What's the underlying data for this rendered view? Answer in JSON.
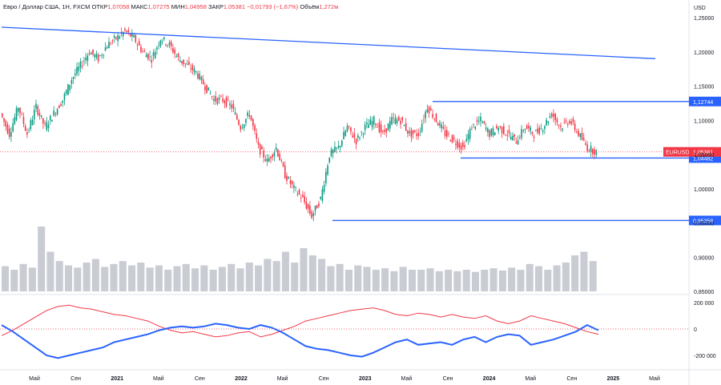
{
  "header": {
    "title": "Евро / Доллар США, 1Н, FXCM",
    "open_label": "ОТКР",
    "open": "1,07058",
    "high_label": "МАКС",
    "high": "1,07275",
    "low_label": "МИН",
    "low": "1,04958",
    "close_label": "ЗАКР",
    "close": "1,05381",
    "change": "−0,01793 (−1,67%)",
    "volume_label": "Объём",
    "volume": "1,272м"
  },
  "chart_data": {
    "type": "candlestick",
    "symbol": "EURUSD",
    "currency": "USD",
    "price_axis": {
      "min": 0.85,
      "max": 1.27,
      "ticks": [
        "1,25000",
        "1,20000",
        "1,15000",
        "1,10000",
        "1,05000",
        "1,00000",
        "0,95000",
        "0,90000",
        "0,85000"
      ]
    },
    "time_axis": {
      "labels": [
        "Май",
        "Сен",
        "2021",
        "Май",
        "Сен",
        "2022",
        "Май",
        "Сен",
        "2023",
        "Май",
        "Сен",
        "2024",
        "Май",
        "Сен",
        "2025",
        "Май"
      ],
      "bold": [
        "2021",
        "2022",
        "2023",
        "2024",
        "2025"
      ]
    },
    "price_path": [
      [
        0,
        1.11
      ],
      [
        5,
        1.08
      ],
      [
        10,
        1.12
      ],
      [
        15,
        1.08
      ],
      [
        20,
        1.12
      ],
      [
        25,
        1.09
      ],
      [
        30,
        1.11
      ],
      [
        35,
        1.13
      ],
      [
        40,
        1.16
      ],
      [
        45,
        1.18
      ],
      [
        50,
        1.2
      ],
      [
        55,
        1.19
      ],
      [
        60,
        1.21
      ],
      [
        65,
        1.22
      ],
      [
        70,
        1.23
      ],
      [
        75,
        1.22
      ],
      [
        80,
        1.2
      ],
      [
        85,
        1.19
      ],
      [
        90,
        1.22
      ],
      [
        95,
        1.21
      ],
      [
        100,
        1.19
      ],
      [
        105,
        1.18
      ],
      [
        110,
        1.17
      ],
      [
        115,
        1.15
      ],
      [
        120,
        1.13
      ],
      [
        125,
        1.13
      ],
      [
        130,
        1.12
      ],
      [
        135,
        1.09
      ],
      [
        140,
        1.11
      ],
      [
        145,
        1.06
      ],
      [
        150,
        1.04
      ],
      [
        155,
        1.06
      ],
      [
        160,
        1.02
      ],
      [
        165,
        1
      ],
      [
        170,
        0.985
      ],
      [
        175,
        0.96
      ],
      [
        180,
        0.985
      ],
      [
        185,
        1.05
      ],
      [
        190,
        1.06
      ],
      [
        195,
        1.09
      ],
      [
        200,
        1.07
      ],
      [
        205,
        1.09
      ],
      [
        210,
        1.1
      ],
      [
        215,
        1.08
      ],
      [
        220,
        1.1
      ],
      [
        225,
        1.1
      ],
      [
        230,
        1.08
      ],
      [
        235,
        1.08
      ],
      [
        240,
        1.12
      ],
      [
        245,
        1.1
      ],
      [
        250,
        1.08
      ],
      [
        255,
        1.07
      ],
      [
        260,
        1.06
      ],
      [
        265,
        1.09
      ],
      [
        270,
        1.1
      ],
      [
        275,
        1.08
      ],
      [
        280,
        1.09
      ],
      [
        285,
        1.08
      ],
      [
        290,
        1.07
      ],
      [
        295,
        1.09
      ],
      [
        300,
        1.08
      ],
      [
        305,
        1.09
      ],
      [
        310,
        1.11
      ],
      [
        315,
        1.09
      ],
      [
        320,
        1.1
      ],
      [
        325,
        1.08
      ],
      [
        330,
        1.06
      ],
      [
        335,
        1.054
      ]
    ],
    "volume": [
      0.35,
      0.3,
      0.38,
      0.33,
      0.9,
      0.55,
      0.42,
      0.36,
      0.33,
      0.4,
      0.45,
      0.34,
      0.38,
      0.42,
      0.36,
      0.4,
      0.33,
      0.36,
      0.3,
      0.35,
      0.38,
      0.32,
      0.36,
      0.3,
      0.34,
      0.38,
      0.32,
      0.4,
      0.36,
      0.45,
      0.42,
      0.55,
      0.4,
      0.6,
      0.5,
      0.45,
      0.35,
      0.38,
      0.3,
      0.36,
      0.34,
      0.3,
      0.32,
      0.28,
      0.34,
      0.3,
      0.3,
      0.32,
      0.28,
      0.3,
      0.28,
      0.3,
      0.27,
      0.3,
      0.32,
      0.29,
      0.33,
      0.3,
      0.38,
      0.35,
      0.3,
      0.36,
      0.4,
      0.5,
      0.55,
      0.42
    ],
    "horizontal_levels": [
      {
        "value": 1.12744,
        "label": "1,12744"
      },
      {
        "value": 1.04482,
        "label": "1,04482"
      },
      {
        "value": 0.95358,
        "label": "0,95358"
      }
    ],
    "current_price": {
      "value": 1.05381,
      "symbol": "EURUSD",
      "label": "1,05381"
    },
    "trend_line": {
      "from": [
        0,
        1.236
      ],
      "to": [
        330,
        1.19
      ]
    },
    "oscillator": {
      "min": -250000,
      "max": 250000,
      "ticks": [
        "200 000",
        "0",
        "-200 000"
      ],
      "red_series": [
        -50000,
        -10000,
        40000,
        90000,
        140000,
        170000,
        180000,
        160000,
        150000,
        130000,
        110000,
        100000,
        80000,
        60000,
        20000,
        -10000,
        -30000,
        -20000,
        -40000,
        -60000,
        -50000,
        -30000,
        -20000,
        -60000,
        -40000,
        -10000,
        20000,
        60000,
        80000,
        100000,
        120000,
        140000,
        150000,
        160000,
        140000,
        110000,
        100000,
        120000,
        110000,
        90000,
        110000,
        90000,
        80000,
        100000,
        60000,
        40000,
        60000,
        100000,
        80000,
        60000,
        40000,
        10000,
        -20000,
        -40000
      ],
      "blue_series": [
        30000,
        -20000,
        -80000,
        -140000,
        -200000,
        -220000,
        -200000,
        -180000,
        -160000,
        -140000,
        -100000,
        -80000,
        -60000,
        -40000,
        -10000,
        10000,
        20000,
        10000,
        20000,
        40000,
        30000,
        10000,
        0,
        30000,
        10000,
        -30000,
        -80000,
        -130000,
        -150000,
        -160000,
        -180000,
        -200000,
        -210000,
        -180000,
        -140000,
        -100000,
        -80000,
        -120000,
        -110000,
        -100000,
        -120000,
        -80000,
        -60000,
        -100000,
        -60000,
        -40000,
        -50000,
        -120000,
        -100000,
        -80000,
        -50000,
        -20000,
        30000,
        -10000
      ]
    }
  }
}
